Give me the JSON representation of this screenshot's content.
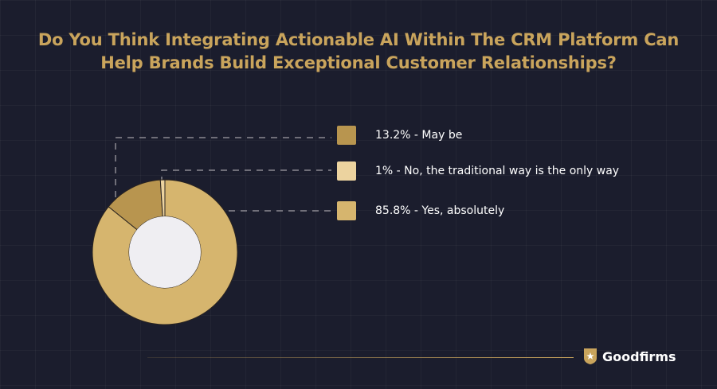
{
  "title_lines": [
    "Do You Think Integrating Actionable AI Within The CRM Platform Can",
    "Help Brands Build Exceptional Customer Relationships?"
  ],
  "colors": {
    "background": "#1b1d2d",
    "title": "#c9a45c",
    "maybe": "#b8954f",
    "no": "#ecd39f",
    "yes": "#d6b56e",
    "center": "#efeef2",
    "leader": "#8b8a92"
  },
  "chart_data": {
    "type": "pie",
    "variant": "donut",
    "title": "Do You Think Integrating Actionable AI Within The CRM Platform Can Help Brands Build Exceptional Customer Relationships?",
    "slices": [
      {
        "label": "13.2% - May be",
        "value": 13.2,
        "color": "#b8954f"
      },
      {
        "label": "1% - No, the traditional way is the only way",
        "value": 1,
        "color": "#ecd39f"
      },
      {
        "label": "85.8% - Yes, absolutely",
        "value": 85.8,
        "color": "#d6b56e"
      }
    ],
    "legend_placement": "right"
  },
  "brand": {
    "name": "Goodfirms",
    "icon": "star-shield-icon"
  }
}
